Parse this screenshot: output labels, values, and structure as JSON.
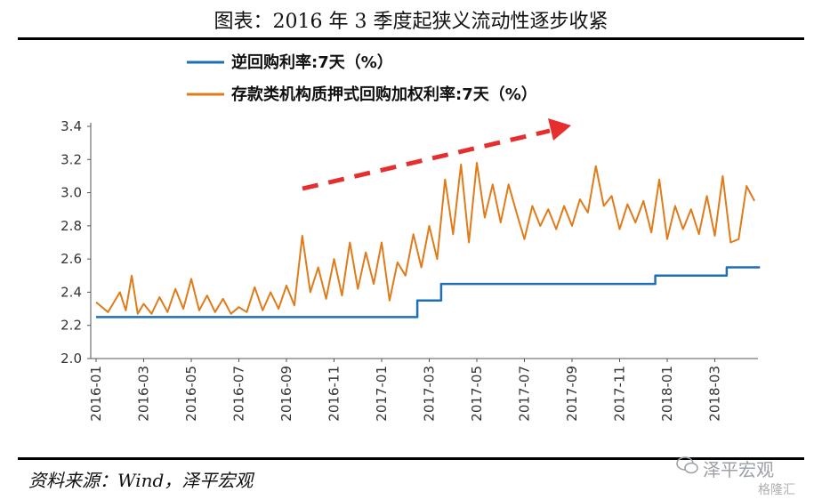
{
  "header": {
    "title": "图表：2016 年 3 季度起狭义流动性逐步收紧"
  },
  "footer": {
    "source": "资料来源：Wind，泽平宏观",
    "watermark": "泽平宏观",
    "watermark2": "格隆汇"
  },
  "colors": {
    "series1": "#1f6fb5",
    "series2": "#e07b1a",
    "arrow": "#e62e2e",
    "axis": "#555555"
  },
  "chart_data": {
    "type": "line",
    "title": "",
    "xlabel": "",
    "ylabel": "",
    "ylim": [
      2.0,
      3.4
    ],
    "yticks": [
      "2.0",
      "2.2",
      "2.4",
      "2.6",
      "2.8",
      "3.0",
      "3.2",
      "3.4"
    ],
    "xticks": [
      "2016-01",
      "2016-03",
      "2016-05",
      "2016-07",
      "2016-09",
      "2016-11",
      "2017-01",
      "2017-03",
      "2017-05",
      "2017-07",
      "2017-09",
      "2017-11",
      "2018-01",
      "2018-03"
    ],
    "legend_position": "top-left",
    "annotation": "upward-trend-arrow",
    "series": [
      {
        "name": "逆回购利率:7天（%）",
        "color": "#1f6fb5",
        "points": [
          [
            "2016-01",
            2.25
          ],
          [
            "2017-02",
            2.25
          ],
          [
            "2017-02",
            2.35
          ],
          [
            "2017-03",
            2.35
          ],
          [
            "2017-03",
            2.45
          ],
          [
            "2017-12",
            2.45
          ],
          [
            "2017-12",
            2.5
          ],
          [
            "2018-03",
            2.5
          ],
          [
            "2018-03",
            2.55
          ],
          [
            "2018-04",
            2.55
          ]
        ]
      },
      {
        "name": "存款类机构质押式回购加权利率:7天（%）",
        "color": "#e07b1a",
        "points": [
          [
            "2016-01",
            2.34
          ],
          [
            "2016-01",
            2.28
          ],
          [
            "2016-02",
            2.4
          ],
          [
            "2016-02",
            2.29
          ],
          [
            "2016-02",
            2.5
          ],
          [
            "2016-02",
            2.27
          ],
          [
            "2016-03",
            2.33
          ],
          [
            "2016-03",
            2.27
          ],
          [
            "2016-03",
            2.37
          ],
          [
            "2016-04",
            2.28
          ],
          [
            "2016-04",
            2.42
          ],
          [
            "2016-04",
            2.3
          ],
          [
            "2016-05",
            2.48
          ],
          [
            "2016-05",
            2.29
          ],
          [
            "2016-05",
            2.38
          ],
          [
            "2016-06",
            2.28
          ],
          [
            "2016-06",
            2.36
          ],
          [
            "2016-06",
            2.27
          ],
          [
            "2016-07",
            2.31
          ],
          [
            "2016-07",
            2.28
          ],
          [
            "2016-07",
            2.43
          ],
          [
            "2016-08",
            2.29
          ],
          [
            "2016-08",
            2.4
          ],
          [
            "2016-08",
            2.3
          ],
          [
            "2016-09",
            2.44
          ],
          [
            "2016-09",
            2.32
          ],
          [
            "2016-09",
            2.74
          ],
          [
            "2016-10",
            2.4
          ],
          [
            "2016-10",
            2.55
          ],
          [
            "2016-10",
            2.36
          ],
          [
            "2016-11",
            2.6
          ],
          [
            "2016-11",
            2.38
          ],
          [
            "2016-11",
            2.7
          ],
          [
            "2016-12",
            2.42
          ],
          [
            "2016-12",
            2.64
          ],
          [
            "2016-12",
            2.45
          ],
          [
            "2017-01",
            2.7
          ],
          [
            "2017-01",
            2.35
          ],
          [
            "2017-01",
            2.58
          ],
          [
            "2017-02",
            2.5
          ],
          [
            "2017-02",
            2.75
          ],
          [
            "2017-02",
            2.55
          ],
          [
            "2017-03",
            2.8
          ],
          [
            "2017-03",
            2.6
          ],
          [
            "2017-03",
            3.08
          ],
          [
            "2017-04",
            2.75
          ],
          [
            "2017-04",
            3.17
          ],
          [
            "2017-04",
            2.7
          ],
          [
            "2017-05",
            3.18
          ],
          [
            "2017-05",
            2.85
          ],
          [
            "2017-05",
            3.05
          ],
          [
            "2017-06",
            2.82
          ],
          [
            "2017-06",
            3.05
          ],
          [
            "2017-06",
            2.88
          ],
          [
            "2017-07",
            2.72
          ],
          [
            "2017-07",
            2.92
          ],
          [
            "2017-07",
            2.8
          ],
          [
            "2017-08",
            2.9
          ],
          [
            "2017-08",
            2.78
          ],
          [
            "2017-08",
            2.92
          ],
          [
            "2017-09",
            2.8
          ],
          [
            "2017-09",
            2.96
          ],
          [
            "2017-09",
            2.88
          ],
          [
            "2017-10",
            3.16
          ],
          [
            "2017-10",
            2.92
          ],
          [
            "2017-10",
            2.98
          ],
          [
            "2017-11",
            2.78
          ],
          [
            "2017-11",
            2.93
          ],
          [
            "2017-11",
            2.82
          ],
          [
            "2017-12",
            2.95
          ],
          [
            "2017-12",
            2.76
          ],
          [
            "2017-12",
            3.08
          ],
          [
            "2018-01",
            2.72
          ],
          [
            "2018-01",
            2.92
          ],
          [
            "2018-01",
            2.78
          ],
          [
            "2018-02",
            2.9
          ],
          [
            "2018-02",
            2.75
          ],
          [
            "2018-02",
            2.98
          ],
          [
            "2018-03",
            2.74
          ],
          [
            "2018-03",
            3.1
          ],
          [
            "2018-03",
            2.7
          ],
          [
            "2018-04",
            2.72
          ],
          [
            "2018-04",
            3.04
          ],
          [
            "2018-04",
            2.95
          ]
        ]
      }
    ]
  }
}
